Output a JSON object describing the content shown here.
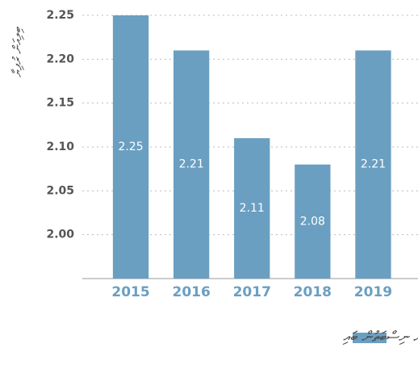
{
  "chart_data": {
    "type": "bar",
    "y_label": "ބިލިއަން ރުފިޔާ",
    "categories": [
      "2015",
      "2016",
      "2017",
      "2018",
      "2019"
    ],
    "series": [
      {
        "name": "ބޭރުގެ ވިޔަފާރީގެ ފައިދާއަށް ނިސްބަތުން ބައި",
        "color": "#6a9fc1",
        "values": [
          2.25,
          2.21,
          2.11,
          2.08,
          2.21
        ]
      }
    ],
    "ylim": [
      1.95,
      2.25
    ],
    "yticks": [
      {
        "value": 2.0,
        "label": "2.00"
      },
      2.05,
      {
        "value": 2.1,
        "label": "2.10"
      },
      2.15,
      {
        "value": 2.2,
        "label": "2.20"
      },
      2.25
    ],
    "grid": true
  }
}
